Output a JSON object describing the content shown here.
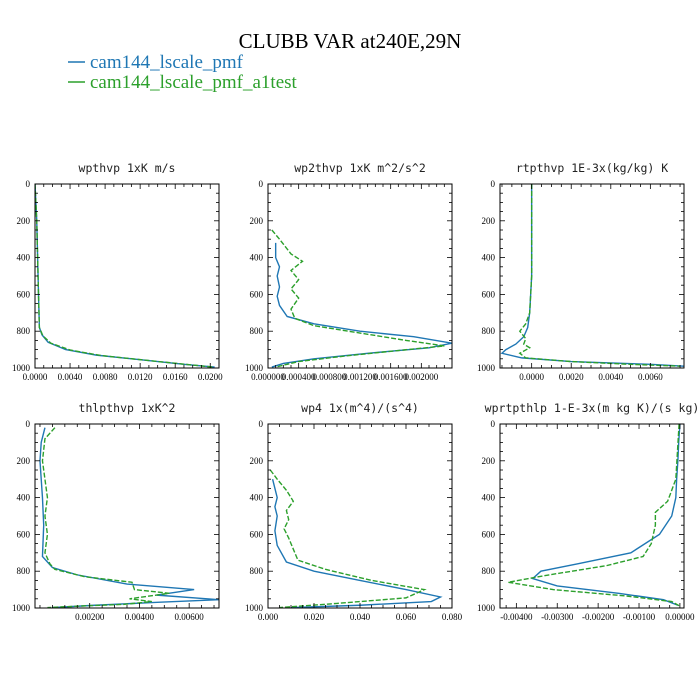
{
  "title": "CLUBB VAR at240E,29N",
  "colors": {
    "series1": "#1f77b4",
    "series2": "#2ca02c"
  },
  "legend": [
    {
      "label": "cam144_lscale_pmf",
      "color": "#1f77b4"
    },
    {
      "label": "cam144_lscale_pmf_a1test",
      "color": "#2ca02c"
    }
  ],
  "chart_data": [
    {
      "type": "line",
      "title": "wpthvp   1xK m/s",
      "xlim": [
        0,
        0.021
      ],
      "ylim": [
        1000,
        0
      ],
      "xticks": [
        "0.0000",
        "0.0040",
        "0.0080",
        "0.0120",
        "0.0160",
        "0.0200"
      ],
      "xtick_values": [
        0,
        0.004,
        0.008,
        0.012,
        0.016,
        0.02
      ],
      "yticks": [
        "0",
        "200",
        "400",
        "600",
        "800",
        "1000"
      ],
      "ytick_values": [
        0,
        200,
        400,
        600,
        800,
        1000
      ],
      "series": [
        {
          "name": "cam144_lscale_pmf",
          "x": [
            0,
            0.0002,
            0.0003,
            0.0004,
            0.0005,
            0.0008,
            0.0015,
            0.0035,
            0.007,
            0.012,
            0.017,
            0.0205
          ],
          "y": [
            0,
            200,
            400,
            600,
            780,
            820,
            860,
            900,
            930,
            955,
            980,
            995
          ]
        },
        {
          "name": "cam144_lscale_pmf_a1test",
          "x": [
            0,
            0.0002,
            0.0003,
            0.0004,
            0.0005,
            0.0009,
            0.0018,
            0.004,
            0.0075,
            0.0125,
            0.0172,
            0.0203
          ],
          "y": [
            0,
            200,
            400,
            600,
            780,
            825,
            865,
            902,
            932,
            957,
            980,
            995
          ]
        }
      ]
    },
    {
      "type": "line",
      "title": "wp2thvp   1xK m^2/s^2",
      "xlim": [
        0,
        0.0024
      ],
      "ylim": [
        1000,
        0
      ],
      "xticks": [
        "0.000000",
        "0.000400",
        "0.000800",
        "0.001200",
        "0.001600",
        "0.002000"
      ],
      "xtick_values": [
        0,
        0.0004,
        0.0008,
        0.0012,
        0.0016,
        0.002
      ],
      "yticks": [
        "0",
        "200",
        "400",
        "600",
        "800",
        "1000"
      ],
      "ytick_values": [
        0,
        200,
        400,
        600,
        800,
        1000
      ],
      "series": [
        {
          "name": "cam144_lscale_pmf",
          "x": [
            0.0001,
            0.0001,
            0.00015,
            0.00012,
            0.00015,
            0.00012,
            0.00015,
            0.00025,
            0.0006,
            0.0012,
            0.0019,
            0.0024,
            0.0021,
            0.0013,
            0.0006,
            0.0002,
            5e-05
          ],
          "y": [
            320,
            400,
            450,
            500,
            560,
            610,
            660,
            720,
            760,
            800,
            830,
            865,
            890,
            920,
            950,
            975,
            995
          ]
        },
        {
          "name": "cam144_lscale_pmf_a1test",
          "x": [
            5e-05,
            0.00015,
            0.0003,
            0.00045,
            0.0003,
            0.0004,
            0.0003,
            0.0004,
            0.0003,
            0.00035,
            0.0006,
            0.0012,
            0.0018,
            0.0023,
            0.0017,
            0.001,
            0.0004,
            0.0001
          ],
          "y": [
            250,
            300,
            380,
            420,
            470,
            520,
            570,
            620,
            680,
            730,
            770,
            810,
            850,
            880,
            905,
            935,
            965,
            995
          ]
        }
      ]
    },
    {
      "type": "line",
      "title": "rtpthvp   1E-3x(kg/kg) K",
      "xlim": [
        -0.0016,
        0.0077
      ],
      "ylim": [
        1000,
        0
      ],
      "xticks": [
        "0.0000",
        "0.0020",
        "0.0040",
        "0.0060"
      ],
      "xtick_values": [
        0,
        0.002,
        0.004,
        0.006
      ],
      "yticks": [
        "0",
        "200",
        "400",
        "600",
        "800",
        "1000"
      ],
      "ytick_values": [
        0,
        200,
        400,
        600,
        800,
        1000
      ],
      "series": [
        {
          "name": "cam144_lscale_pmf",
          "x": [
            0,
            0,
            -0.0001,
            -0.0002,
            -0.0004,
            -0.0008,
            -0.0013,
            -0.0015,
            -0.0005,
            0.002,
            0.006,
            0.0077
          ],
          "y": [
            0,
            500,
            700,
            780,
            830,
            870,
            900,
            920,
            945,
            965,
            980,
            990
          ]
        },
        {
          "name": "cam144_lscale_pmf_a1test",
          "x": [
            0,
            0,
            -0.0001,
            -0.0003,
            -0.0006,
            -0.0003,
            -0.0004,
            -0.0001,
            -0.0006,
            -0.0003,
            0.002,
            0.005,
            0.0075
          ],
          "y": [
            0,
            500,
            700,
            760,
            800,
            840,
            870,
            890,
            920,
            945,
            965,
            980,
            990
          ]
        }
      ]
    },
    {
      "type": "line",
      "title": "thlpthvp   1xK^2",
      "xlim": [
        -0.0002,
        0.0072
      ],
      "ylim": [
        1000,
        0
      ],
      "xticks": [
        "0.00200",
        "0.00400",
        "0.00600"
      ],
      "xtick_values": [
        0.002,
        0.004,
        0.006
      ],
      "yticks": [
        "0",
        "200",
        "400",
        "600",
        "800",
        "1000"
      ],
      "ytick_values": [
        0,
        200,
        400,
        600,
        800,
        1000
      ],
      "series": [
        {
          "name": "cam144_lscale_pmf",
          "x": [
            0.0002,
            5e-05,
            0,
            0.0001,
            0.00015,
            0.0001,
            0.0005,
            0.0015,
            0.0035,
            0.0062,
            0.0047,
            0.0072,
            0.0046,
            0.0022,
            0.0005
          ],
          "y": [
            20,
            100,
            200,
            400,
            550,
            720,
            780,
            820,
            870,
            900,
            930,
            955,
            970,
            985,
            998
          ]
        },
        {
          "name": "cam144_lscale_pmf_a1test",
          "x": [
            0.0006,
            0.0002,
            0.0001,
            0.0003,
            0.0002,
            0.0003,
            0.0002,
            0.0004,
            0.0006,
            0.0018,
            0.0037,
            0.0038,
            0.0052,
            0.0036,
            0.0045,
            0.0034,
            0.0015,
            0.0003
          ],
          "y": [
            20,
            80,
            200,
            400,
            500,
            600,
            700,
            760,
            790,
            830,
            860,
            900,
            920,
            950,
            965,
            980,
            990,
            998
          ]
        }
      ]
    },
    {
      "type": "line",
      "title": "wp4   1x(m^4)/(s^4)",
      "xlim": [
        0,
        0.08
      ],
      "ylim": [
        1000,
        0
      ],
      "xticks": [
        "0.000",
        "0.020",
        "0.040",
        "0.060",
        "0.080"
      ],
      "xtick_values": [
        0,
        0.02,
        0.04,
        0.06,
        0.08
      ],
      "yticks": [
        "0",
        "200",
        "400",
        "600",
        "800",
        "1000"
      ],
      "ytick_values": [
        0,
        200,
        400,
        600,
        800,
        1000
      ],
      "series": [
        {
          "name": "cam144_lscale_pmf",
          "x": [
            0.002,
            0.004,
            0.003,
            0.004,
            0.003,
            0.004,
            0.008,
            0.02,
            0.04,
            0.06,
            0.075,
            0.071,
            0.04,
            0.01
          ],
          "y": [
            300,
            400,
            450,
            500,
            580,
            660,
            750,
            800,
            850,
            900,
            940,
            965,
            985,
            998
          ]
        },
        {
          "name": "cam144_lscale_pmf_a1test",
          "x": [
            0.001,
            0.004,
            0.008,
            0.011,
            0.008,
            0.009,
            0.007,
            0.009,
            0.013,
            0.025,
            0.045,
            0.068,
            0.06,
            0.03,
            0.005
          ],
          "y": [
            250,
            300,
            360,
            420,
            470,
            520,
            570,
            620,
            740,
            790,
            850,
            900,
            945,
            975,
            998
          ]
        }
      ]
    },
    {
      "type": "line",
      "title": "wprtpthlp   1-E-3x(m kg K)/(s kg)",
      "xlim": [
        -0.0044,
        0.0001
      ],
      "ylim": [
        1000,
        0
      ],
      "xticks": [
        "-0.00400",
        "-0.00300",
        "-0.00200",
        "-0.00100",
        "0.00000"
      ],
      "xtick_values": [
        -0.004,
        -0.003,
        -0.002,
        -0.001,
        0
      ],
      "yticks": [
        "0",
        "200",
        "400",
        "600",
        "800",
        "1000"
      ],
      "ytick_values": [
        0,
        200,
        400,
        600,
        800,
        1000
      ],
      "series": [
        {
          "name": "cam144_lscale_pmf",
          "x": [
            0,
            -3e-05,
            -5e-05,
            -8e-05,
            -0.0001,
            -0.0002,
            -0.0005,
            -0.0012,
            -0.0025,
            -0.0034,
            -0.0036,
            -0.003,
            -0.0015,
            -0.0004,
            -5e-05
          ],
          "y": [
            0,
            100,
            200,
            300,
            400,
            500,
            600,
            700,
            760,
            800,
            840,
            880,
            920,
            955,
            985
          ]
        },
        {
          "name": "cam144_lscale_pmf_a1test",
          "x": [
            -2e-05,
            -0.0001,
            -0.0003,
            -0.0006,
            -0.0006,
            -0.0007,
            -0.0009,
            -0.0018,
            -0.0032,
            -0.0042,
            -0.0031,
            -0.0013,
            -0.0002,
            0
          ],
          "y": [
            0,
            300,
            420,
            480,
            550,
            650,
            720,
            770,
            820,
            860,
            900,
            935,
            965,
            990
          ]
        }
      ]
    }
  ]
}
